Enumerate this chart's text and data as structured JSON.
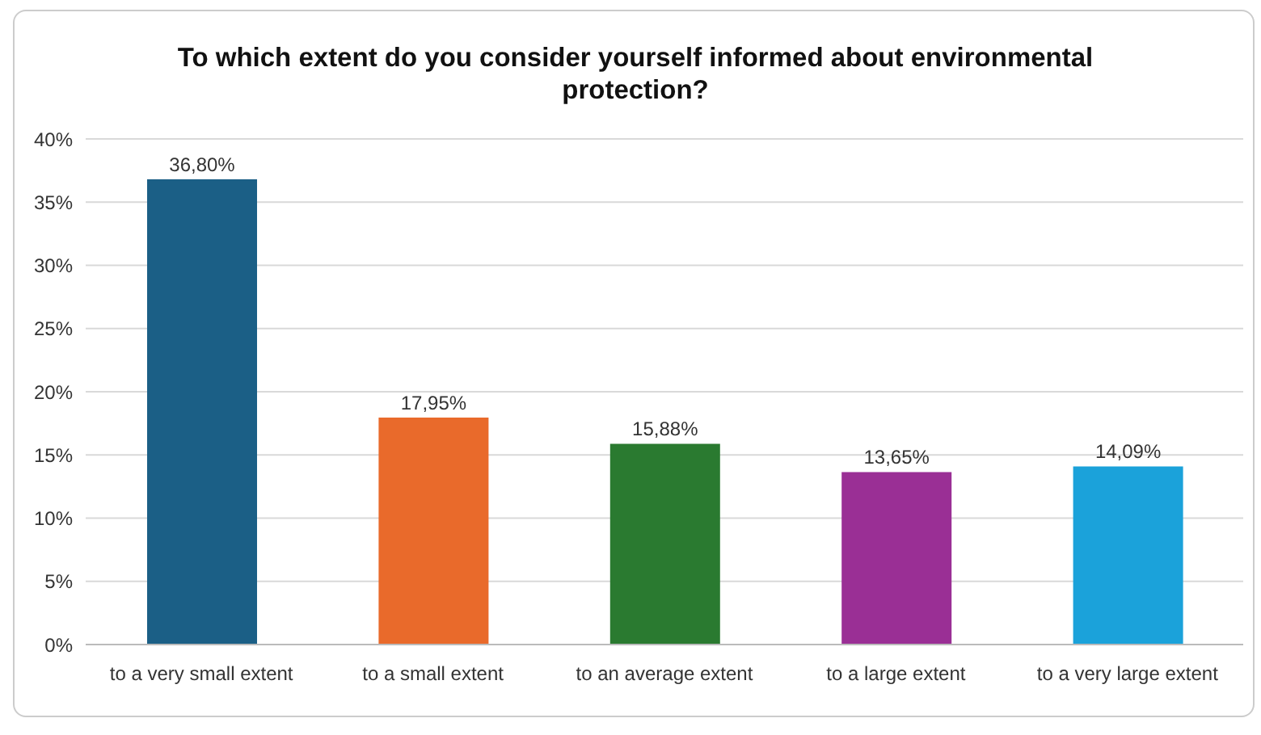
{
  "chart_data": {
    "type": "bar",
    "title": "To which extent do you consider yourself informed about environmental protection?",
    "categories": [
      "to a very small extent",
      "to a small extent",
      "to an average extent",
      "to a large extent",
      "to a very large extent"
    ],
    "values": [
      36.8,
      17.95,
      15.88,
      13.65,
      14.09
    ],
    "colors": [
      "#1b5f86",
      "#e96a2b",
      "#2a7a30",
      "#9a2f95",
      "#1ba2da"
    ],
    "value_labels": [
      "36,80%",
      "17,95%",
      "15,88%",
      "13,65%",
      "14,09%"
    ],
    "ylim": [
      0,
      40
    ],
    "yticks": [
      {
        "value": 0,
        "label": "0%"
      },
      {
        "value": 5,
        "label": "5%"
      },
      {
        "value": 10,
        "label": "10%"
      },
      {
        "value": 15,
        "label": "15%"
      },
      {
        "value": 20,
        "label": "20%"
      },
      {
        "value": 25,
        "label": "25%"
      },
      {
        "value": 30,
        "label": "30%"
      },
      {
        "value": 35,
        "label": "35%"
      },
      {
        "value": 40,
        "label": "40%"
      }
    ],
    "grid": "y"
  }
}
